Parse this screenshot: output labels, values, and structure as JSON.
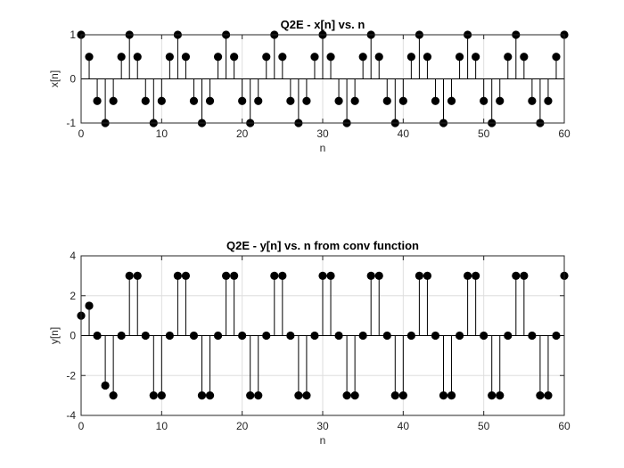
{
  "chart_data": [
    {
      "type": "stem",
      "title": "Q2E - x[n] vs. n",
      "xlabel": "n",
      "ylabel": "x[n]",
      "xlim": [
        0,
        60
      ],
      "ylim": [
        -1,
        1
      ],
      "xticks": [
        "0",
        "10",
        "20",
        "30",
        "40",
        "50",
        "60"
      ],
      "yticks": [
        "-1",
        "0",
        "1"
      ],
      "grid": true,
      "series": [
        {
          "x": [
            0,
            1,
            2,
            3,
            4,
            5,
            6,
            7,
            8,
            9,
            10,
            11,
            12,
            13,
            14,
            15,
            16,
            17,
            18,
            19,
            20,
            21,
            22,
            23,
            24,
            25,
            26,
            27,
            28,
            29,
            30,
            31,
            32,
            33,
            34,
            35,
            36,
            37,
            38,
            39,
            40,
            41,
            42,
            43,
            44,
            45,
            46,
            47,
            48,
            49,
            50,
            51,
            52,
            53,
            54,
            55,
            56,
            57,
            58,
            59,
            60
          ],
          "y": [
            1,
            0.5,
            -0.5,
            -1,
            -0.5,
            0.5,
            1,
            0.5,
            -0.5,
            -1,
            -0.5,
            0.5,
            1,
            0.5,
            -0.5,
            -1,
            -0.5,
            0.5,
            1,
            0.5,
            -0.5,
            -1,
            -0.5,
            0.5,
            1,
            0.5,
            -0.5,
            -1,
            -0.5,
            0.5,
            1,
            0.5,
            -0.5,
            -1,
            -0.5,
            0.5,
            1,
            0.5,
            -0.5,
            -1,
            -0.5,
            0.5,
            1,
            0.5,
            -0.5,
            -1,
            -0.5,
            0.5,
            1,
            0.5,
            -0.5,
            -1,
            -0.5,
            0.5,
            1,
            0.5,
            -0.5,
            -1,
            -0.5,
            0.5,
            1
          ]
        }
      ]
    },
    {
      "type": "stem",
      "title": "Q2E - y[n] vs. n from conv function",
      "xlabel": "n",
      "ylabel": "y[n]",
      "xlim": [
        0,
        60
      ],
      "ylim": [
        -4,
        4
      ],
      "xticks": [
        "0",
        "10",
        "20",
        "30",
        "40",
        "50",
        "60"
      ],
      "yticks": [
        "-4",
        "-2",
        "0",
        "2",
        "4"
      ],
      "grid": true,
      "series": [
        {
          "x": [
            0,
            1,
            2,
            3,
            4,
            5,
            6,
            7,
            8,
            9,
            10,
            11,
            12,
            13,
            14,
            15,
            16,
            17,
            18,
            19,
            20,
            21,
            22,
            23,
            24,
            25,
            26,
            27,
            28,
            29,
            30,
            31,
            32,
            33,
            34,
            35,
            36,
            37,
            38,
            39,
            40,
            41,
            42,
            43,
            44,
            45,
            46,
            47,
            48,
            49,
            50,
            51,
            52,
            53,
            54,
            55,
            56,
            57,
            58,
            59,
            60
          ],
          "y": [
            1,
            1.5,
            0,
            -2.5,
            -3,
            0,
            3,
            3,
            0,
            -3,
            -3,
            0,
            3,
            3,
            0,
            -3,
            -3,
            0,
            3,
            3,
            0,
            -3,
            -3,
            0,
            3,
            3,
            0,
            -3,
            -3,
            0,
            3,
            3,
            0,
            -3,
            -3,
            0,
            3,
            3,
            0,
            -3,
            -3,
            0,
            3,
            3,
            0,
            -3,
            -3,
            0,
            3,
            3,
            0,
            -3,
            -3,
            0,
            3,
            3,
            0,
            -3,
            -3,
            0,
            3
          ]
        }
      ]
    }
  ]
}
